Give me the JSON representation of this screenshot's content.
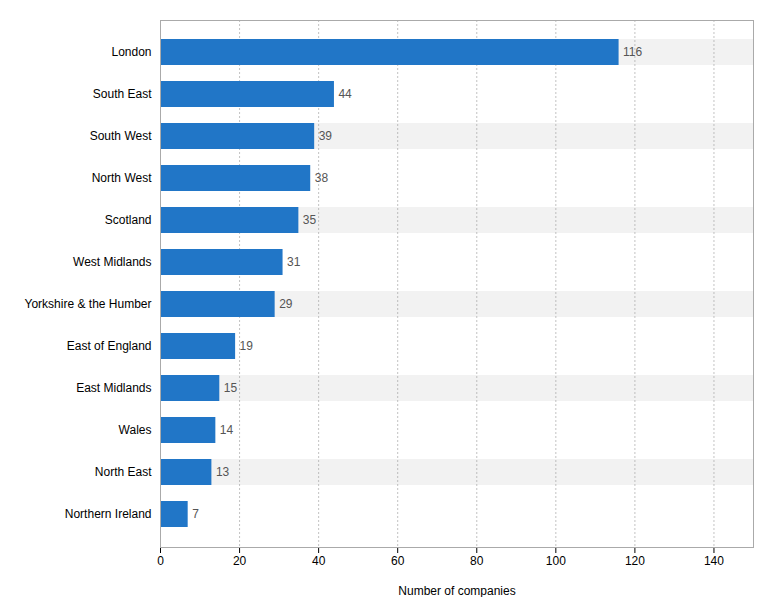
{
  "chart_data": {
    "type": "bar",
    "orientation": "horizontal",
    "categories": [
      "Northern Ireland",
      "North East",
      "Wales",
      "East Midlands",
      "East of England",
      "Yorkshire & the Humber",
      "West Midlands",
      "Scotland",
      "North West",
      "South West",
      "South East",
      "London"
    ],
    "values": [
      7,
      13,
      14,
      15,
      19,
      29,
      31,
      35,
      38,
      39,
      44,
      116
    ],
    "color": "#2176c7",
    "xlabel": "Number of companies",
    "xlim": [
      0,
      150
    ],
    "xticks": [
      0,
      20,
      40,
      60,
      80,
      100,
      120,
      140
    ],
    "grid": true,
    "data_labels": true
  }
}
